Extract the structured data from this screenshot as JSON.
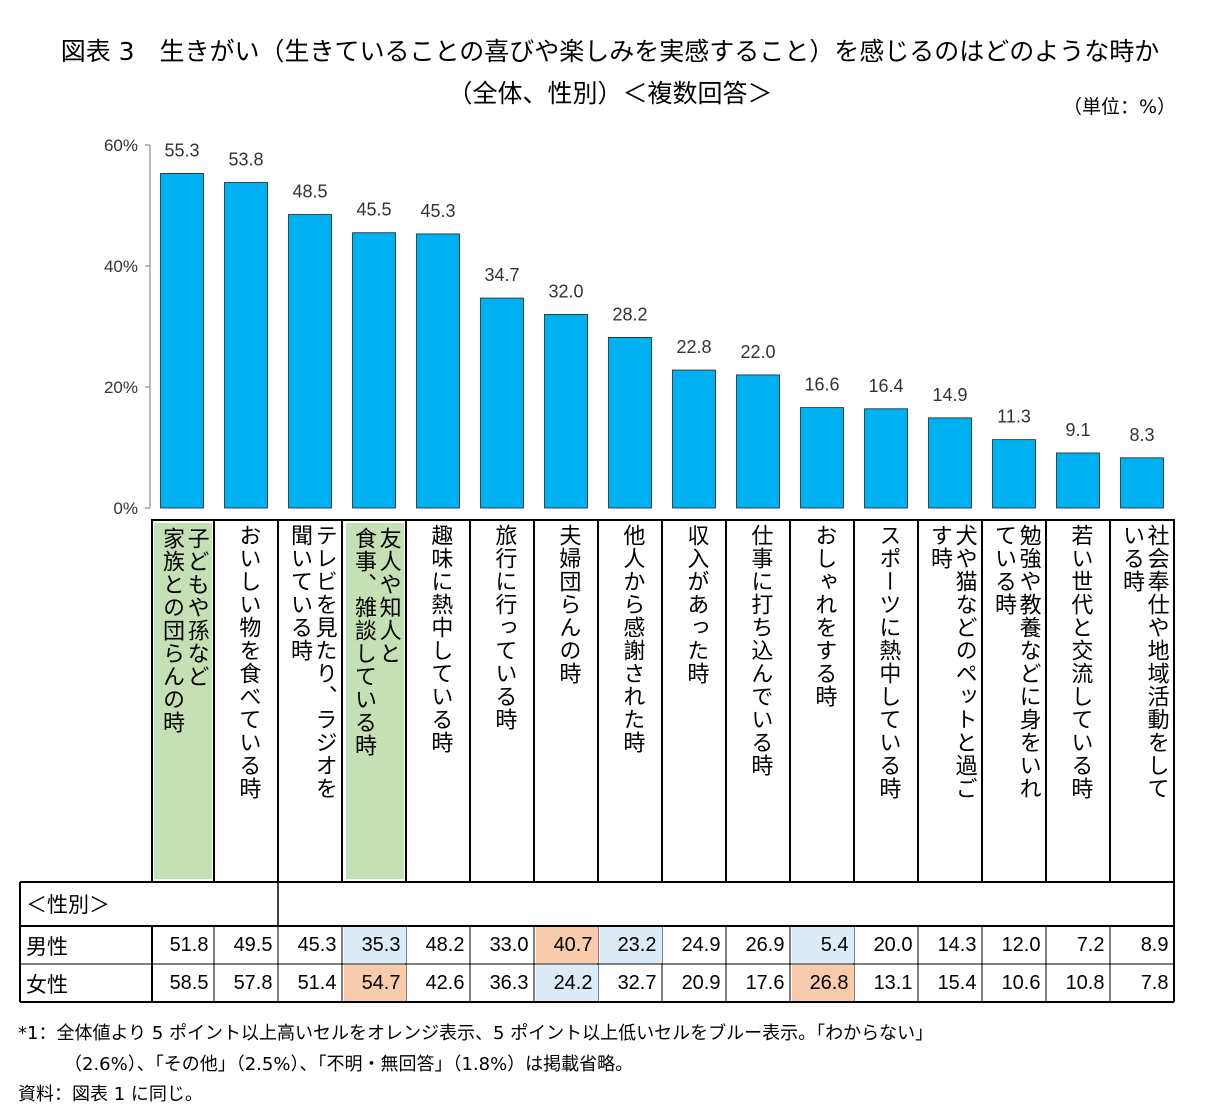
{
  "title": {
    "line1": "図表 3　生きがい（生きていることの喜びや楽しみを実感すること）を感じるのはどのような時か",
    "line2": "（全体、性別）＜複数回答＞"
  },
  "unit": "（単位：%）",
  "colors": {
    "bar": "#00b0f0",
    "highlight_category": "#c5e0b4",
    "higher": "#f8cbad",
    "lower": "#ddebf7"
  },
  "chart_data": {
    "type": "bar",
    "title": "生きがい（生きていることの喜びや楽しみを実感すること）を感じるのはどのような時か（全体、性別）＜複数回答＞",
    "ylim": [
      0,
      60
    ],
    "yticks": [
      "0%",
      "20%",
      "40%",
      "60%"
    ],
    "ytick_values": [
      0,
      20,
      40,
      60
    ],
    "value_labels": [
      "55.3",
      "53.8",
      "48.5",
      "45.5",
      "45.3",
      "34.7",
      "32.0",
      "28.2",
      "22.8",
      "22.0",
      "16.6",
      "16.4",
      "14.9",
      "11.3",
      "9.1",
      "8.3"
    ],
    "categories": [
      "子どもや孫など家族との団らんの時",
      "おいしい物を食べている時",
      "テレビを見たり、ラジオを聞いている時",
      "友人や知人と食事、雑談している時",
      "趣味に熱中している時",
      "旅行に行っている時",
      "夫婦団らんの時",
      "他人から感謝された時",
      "収入があった時",
      "仕事に打ち込んでいる時",
      "おしゃれをする時",
      "スポーツに熱中している時",
      "犬や猫などのペットと過ごす時",
      "勉強や教養などに身をいれている時",
      "若い世代と交流している時",
      "社会奉仕や地域活動をしている時"
    ],
    "category_display": [
      "子どもや孫など\n家族との団らんの時",
      "おいしい物を食べている時",
      "テレビを見たり、ラジオを\n聞いている時",
      "友人や知人と\n食事、雑談している時",
      "趣味に熱中している時",
      "旅行に行っている時",
      "夫婦団らんの時",
      "他人から感謝された時",
      "収入があった時",
      "仕事に打ち込んでいる時",
      "おしゃれをする時",
      "スポーツに熱中している時",
      "犬や猫などのペットと過ご\nす時",
      "勉強や教養などに身をいれ\nている時",
      "若い世代と交流している時",
      "社会奉仕や地域活動をして\nいる時"
    ],
    "highlighted_categories": [
      0,
      3
    ],
    "values": [
      55.3,
      53.8,
      48.5,
      45.5,
      45.3,
      34.7,
      32.0,
      28.2,
      22.8,
      22.0,
      16.6,
      16.4,
      14.9,
      11.3,
      9.1,
      8.3
    ],
    "series": [
      {
        "name": "全体",
        "values": [
          55.3,
          53.8,
          48.5,
          45.5,
          45.3,
          34.7,
          32.0,
          28.2,
          22.8,
          22.0,
          16.6,
          16.4,
          14.9,
          11.3,
          9.1,
          8.3
        ]
      },
      {
        "name": "男性",
        "values": [
          51.8,
          49.5,
          45.3,
          35.3,
          48.2,
          33.0,
          40.7,
          23.2,
          24.9,
          26.9,
          5.4,
          20.0,
          14.3,
          12.0,
          7.2,
          8.9
        ]
      },
      {
        "name": "女性",
        "values": [
          58.5,
          57.8,
          51.4,
          54.7,
          42.6,
          36.3,
          24.2,
          32.7,
          20.9,
          17.6,
          26.8,
          13.1,
          15.4,
          10.6,
          10.8,
          7.8
        ]
      }
    ]
  },
  "table": {
    "header": "＜性別＞",
    "rows": [
      {
        "label": "男性",
        "cells": [
          "51.8",
          "49.5",
          "45.3",
          "35.3",
          "48.2",
          "33.0",
          "40.7",
          "23.2",
          "24.9",
          "26.9",
          "5.4",
          "20.0",
          "14.3",
          "12.0",
          "7.2",
          "8.9"
        ],
        "marks": [
          "",
          "",
          "",
          "lo",
          "",
          "",
          "hi",
          "lo",
          "",
          "",
          "lo",
          "",
          "",
          "",
          "",
          ""
        ]
      },
      {
        "label": "女性",
        "cells": [
          "58.5",
          "57.8",
          "51.4",
          "54.7",
          "42.6",
          "36.3",
          "24.2",
          "32.7",
          "20.9",
          "17.6",
          "26.8",
          "13.1",
          "15.4",
          "10.6",
          "10.8",
          "7.8"
        ],
        "marks": [
          "",
          "",
          "",
          "hi",
          "",
          "",
          "lo",
          "",
          "",
          "",
          "hi",
          "",
          "",
          "",
          "",
          ""
        ]
      }
    ]
  },
  "notes": {
    "note1": "*1：全体値より 5 ポイント以上高いセルをオレンジ表示、5 ポイント以上低いセルをブルー表示。「わからない」",
    "note2": "（2.6%）、「その他」（2.5%）、「不明・無回答」（1.8%）は掲載省略。",
    "note3": "資料：図表 1 に同じ。"
  }
}
